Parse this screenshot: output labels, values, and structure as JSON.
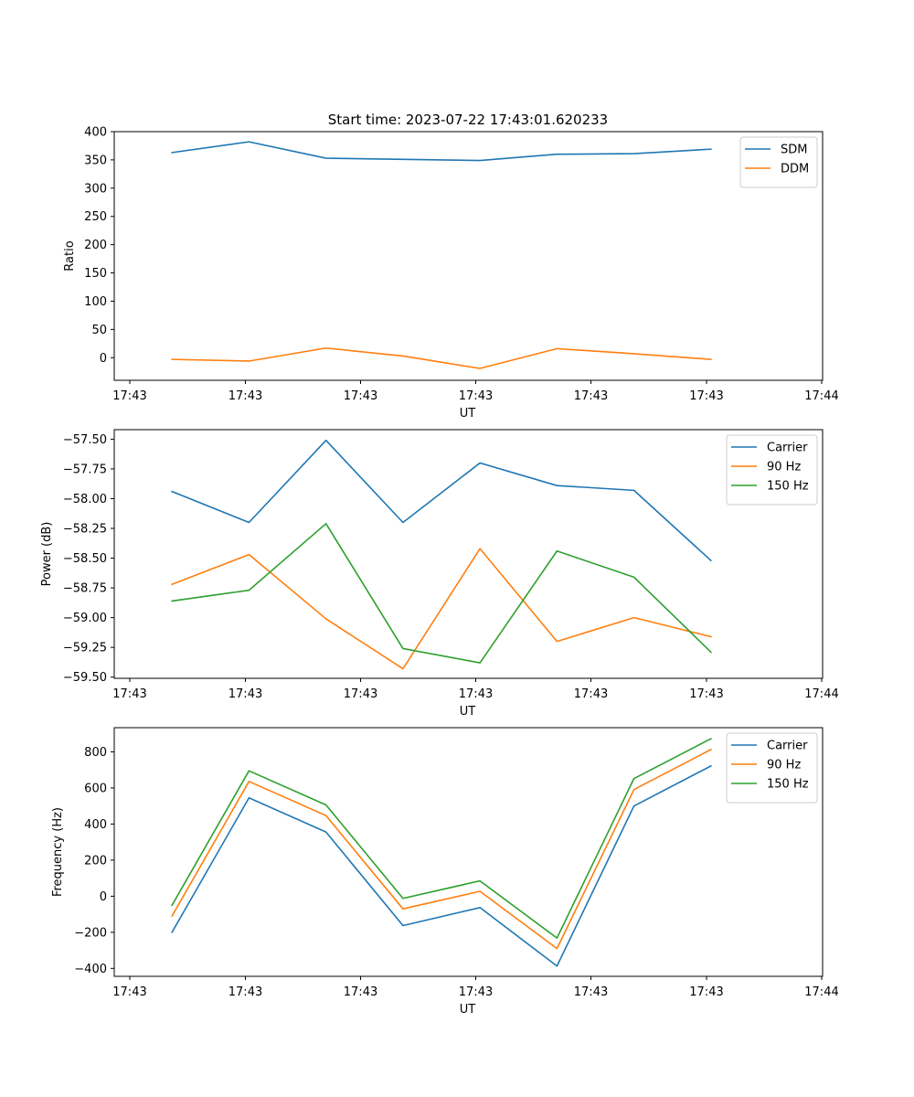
{
  "figure_title": "Start time: 2023-07-22 17:43:01.620233",
  "chart_data": [
    {
      "type": "line",
      "xlabel": "UT",
      "ylabel": "Ratio",
      "x_tick_labels": [
        "17:43",
        "17:43",
        "17:43",
        "17:43",
        "17:43",
        "17:43",
        "17:44"
      ],
      "xlim": [
        -0.75,
        8.45
      ],
      "x": [
        0,
        1,
        2,
        3,
        4,
        5,
        6,
        7
      ],
      "ylim": [
        -40,
        400
      ],
      "yticks": [
        0,
        50,
        100,
        150,
        200,
        250,
        300,
        350,
        400
      ],
      "legend_position": "upper-right",
      "series": [
        {
          "name": "SDM",
          "color": "#1f77b4",
          "values": [
            363,
            382,
            353,
            351,
            349,
            360,
            361,
            369
          ]
        },
        {
          "name": "DDM",
          "color": "#ff7f0e",
          "values": [
            -3,
            -6,
            17,
            3,
            -19,
            16,
            7,
            -3
          ]
        }
      ]
    },
    {
      "type": "line",
      "xlabel": "UT",
      "ylabel": "Power (dB)",
      "x_tick_labels": [
        "17:43",
        "17:43",
        "17:43",
        "17:43",
        "17:43",
        "17:43",
        "17:44"
      ],
      "xlim": [
        -0.75,
        8.45
      ],
      "x": [
        0,
        1,
        2,
        3,
        4,
        5,
        6,
        7
      ],
      "ylim": [
        -59.51,
        -57.42
      ],
      "yticks": [
        -59.5,
        -59.25,
        -59.0,
        -58.75,
        -58.5,
        -58.25,
        -58.0,
        -57.75,
        -57.5
      ],
      "ytick_labels": [
        "−59.50",
        "−59.25",
        "−59.00",
        "−58.75",
        "−58.50",
        "−58.25",
        "−58.00",
        "−57.75",
        "−57.50"
      ],
      "legend_position": "upper-right",
      "series": [
        {
          "name": "Carrier",
          "color": "#1f77b4",
          "values": [
            -57.94,
            -58.2,
            -57.51,
            -58.2,
            -57.7,
            -57.89,
            -57.93,
            -58.52
          ]
        },
        {
          "name": "90 Hz",
          "color": "#ff7f0e",
          "values": [
            -58.72,
            -58.47,
            -59.01,
            -59.43,
            -58.42,
            -59.2,
            -59.0,
            -59.16
          ]
        },
        {
          "name": "150 Hz",
          "color": "#2ca02c",
          "values": [
            -58.86,
            -58.77,
            -58.21,
            -59.26,
            -59.38,
            -58.44,
            -58.66,
            -59.29
          ]
        }
      ]
    },
    {
      "type": "line",
      "xlabel": "UT",
      "ylabel": "Frequency (Hz)",
      "x_tick_labels": [
        "17:43",
        "17:43",
        "17:43",
        "17:43",
        "17:43",
        "17:43",
        "17:44"
      ],
      "xlim": [
        -0.75,
        8.45
      ],
      "x": [
        0,
        1,
        2,
        3,
        4,
        5,
        6,
        7
      ],
      "ylim": [
        -444,
        934
      ],
      "yticks": [
        -400,
        -200,
        0,
        200,
        400,
        600,
        800
      ],
      "ytick_labels": [
        "−400",
        "−200",
        "0",
        "200",
        "400",
        "600",
        "800"
      ],
      "legend_position": "upper-right",
      "series": [
        {
          "name": "Carrier",
          "color": "#1f77b4",
          "values": [
            -200,
            545,
            356,
            -163,
            -63,
            -387,
            500,
            722
          ]
        },
        {
          "name": "90 Hz",
          "color": "#ff7f0e",
          "values": [
            -110,
            636,
            447,
            -70,
            27,
            -290,
            591,
            813
          ]
        },
        {
          "name": "150 Hz",
          "color": "#2ca02c",
          "values": [
            -50,
            695,
            506,
            -12,
            85,
            -232,
            652,
            873
          ]
        }
      ]
    }
  ]
}
